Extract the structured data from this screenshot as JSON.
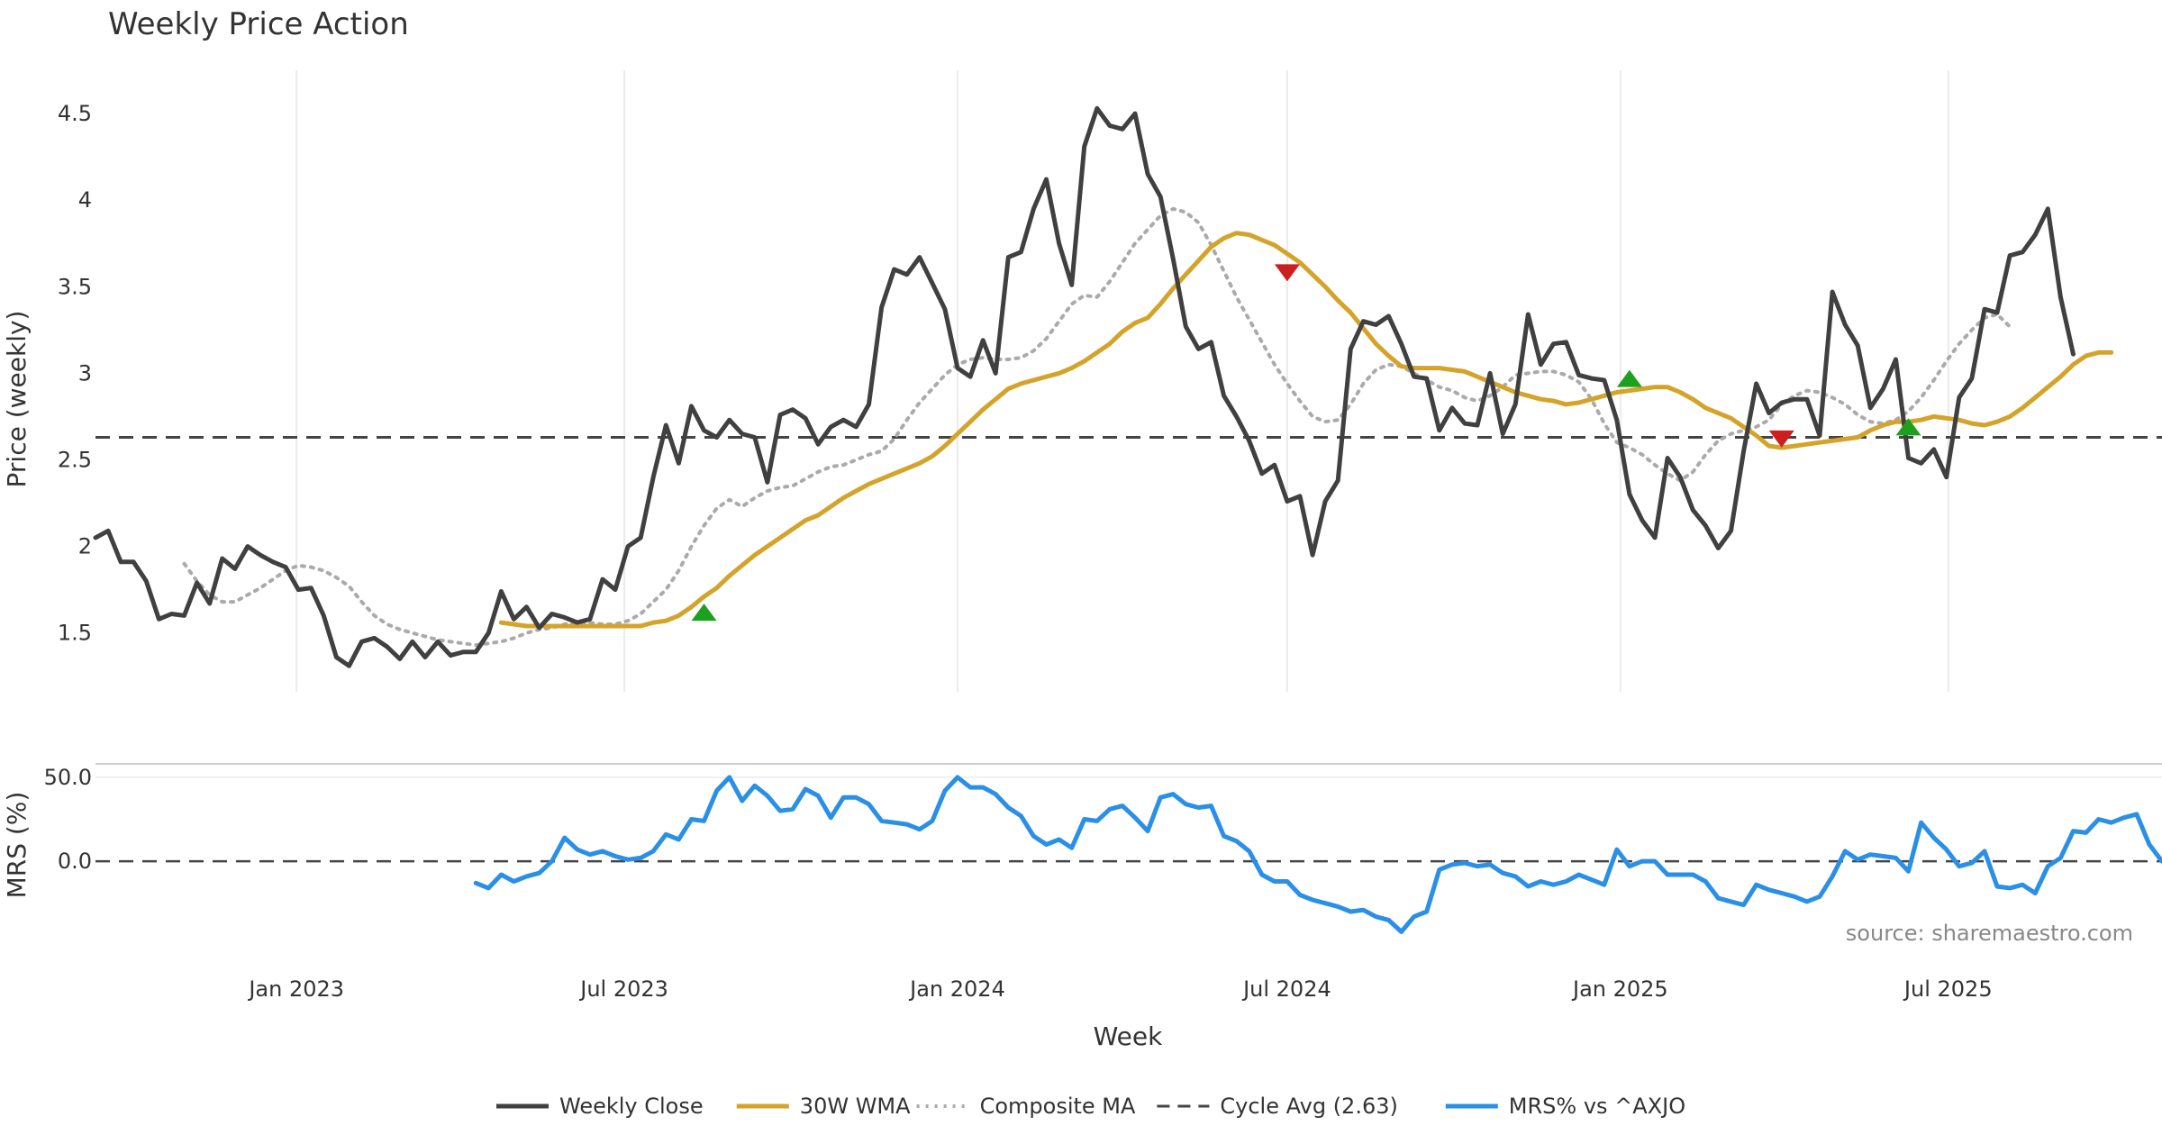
{
  "chart_data": {
    "type": "line",
    "title": "Weekly Price Action",
    "xlabel": "Week",
    "source": "source: sharemaestro.com",
    "x_ticks": [
      {
        "date": "2023-01-01",
        "label": "Jan 2023"
      },
      {
        "date": "2023-07-01",
        "label": "Jul 2023"
      },
      {
        "date": "2024-01-01",
        "label": "Jan 2024"
      },
      {
        "date": "2024-07-01",
        "label": "Jul 2024"
      },
      {
        "date": "2025-01-01",
        "label": "Jan 2025"
      },
      {
        "date": "2025-07-01",
        "label": "Jul 2025"
      }
    ],
    "x_range": [
      "2022-09-12",
      "2025-10-27"
    ],
    "price_panel": {
      "ylabel": "Price (weekly)",
      "ylim": [
        1.16,
        4.75
      ],
      "yticks": [
        {
          "value": 1.5,
          "label": "1.5"
        },
        {
          "value": 2,
          "label": "2"
        },
        {
          "value": 2.5,
          "label": "2.5"
        },
        {
          "value": 3,
          "label": "3"
        },
        {
          "value": 3.5,
          "label": "3.5"
        },
        {
          "value": 4,
          "label": "4"
        },
        {
          "value": 4.5,
          "label": "4.5"
        }
      ],
      "grid": true,
      "reference_line": {
        "name": "Cycle Avg (2.63)",
        "value": 2.63,
        "color": "#444444"
      },
      "series": [
        {
          "name": "Weekly Close",
          "color": "#404040",
          "style": "solid",
          "start": "2022-09-12",
          "interval_days": 7,
          "values": [
            2.05,
            2.09,
            1.91,
            1.91,
            1.8,
            1.58,
            1.61,
            1.6,
            1.79,
            1.67,
            1.93,
            1.87,
            2.0,
            1.95,
            1.91,
            1.88,
            1.75,
            1.76,
            1.6,
            1.36,
            1.31,
            1.45,
            1.47,
            1.42,
            1.35,
            1.45,
            1.36,
            1.45,
            1.37,
            1.39,
            1.39,
            1.5,
            1.74,
            1.58,
            1.65,
            1.53,
            1.61,
            1.59,
            1.56,
            1.58,
            1.81,
            1.75,
            2.0,
            2.05,
            2.4,
            2.7,
            2.48,
            2.81,
            2.67,
            2.63,
            2.73,
            2.65,
            2.63,
            2.37,
            2.76,
            2.79,
            2.74,
            2.59,
            2.69,
            2.73,
            2.69,
            2.82,
            3.38,
            3.6,
            3.57,
            3.67,
            3.52,
            3.37,
            3.03,
            2.98,
            3.19,
            3.0,
            3.67,
            3.7,
            3.95,
            4.12,
            3.75,
            3.51,
            4.31,
            4.53,
            4.43,
            4.41,
            4.5,
            4.15,
            4.02,
            3.66,
            3.27,
            3.14,
            3.18,
            2.87,
            2.75,
            2.61,
            2.42,
            2.47,
            2.26,
            2.29,
            1.95,
            2.26,
            2.38,
            3.14,
            3.3,
            3.28,
            3.33,
            3.17,
            2.98,
            2.97,
            2.67,
            2.8,
            2.71,
            2.7,
            3.0,
            2.65,
            2.82,
            3.34,
            3.05,
            3.17,
            3.18,
            2.99,
            2.97,
            2.96,
            2.73,
            2.3,
            2.15,
            2.05,
            2.51,
            2.4,
            2.21,
            2.12,
            1.99,
            2.09,
            2.55,
            2.94,
            2.77,
            2.83,
            2.85,
            2.85,
            2.64,
            3.47,
            3.28,
            3.16,
            2.8,
            2.91,
            3.08,
            2.51,
            2.48,
            2.56,
            2.4,
            2.86,
            2.97,
            3.37,
            3.35,
            3.68,
            3.7,
            3.8,
            3.95,
            3.44,
            3.11
          ]
        },
        {
          "name": "30W WMA",
          "color": "#D4A32A",
          "style": "solid",
          "start": "2023-04-24",
          "interval_days": 7,
          "values": [
            1.56,
            1.55,
            1.54,
            1.54,
            1.54,
            1.54,
            1.54,
            1.54,
            1.54,
            1.54,
            1.54,
            1.54,
            1.56,
            1.57,
            1.6,
            1.65,
            1.71,
            1.76,
            1.83,
            1.89,
            1.95,
            2.0,
            2.05,
            2.1,
            2.15,
            2.18,
            2.23,
            2.28,
            2.32,
            2.36,
            2.39,
            2.42,
            2.45,
            2.48,
            2.52,
            2.58,
            2.65,
            2.72,
            2.79,
            2.85,
            2.91,
            2.94,
            2.96,
            2.98,
            3.0,
            3.03,
            3.07,
            3.12,
            3.17,
            3.24,
            3.29,
            3.32,
            3.4,
            3.49,
            3.57,
            3.65,
            3.73,
            3.78,
            3.81,
            3.8,
            3.77,
            3.74,
            3.69,
            3.64,
            3.57,
            3.5,
            3.42,
            3.35,
            3.26,
            3.17,
            3.1,
            3.04,
            3.03,
            3.03,
            3.03,
            3.02,
            3.01,
            2.98,
            2.95,
            2.92,
            2.89,
            2.87,
            2.85,
            2.84,
            2.82,
            2.83,
            2.85,
            2.87,
            2.89,
            2.9,
            2.91,
            2.92,
            2.92,
            2.89,
            2.85,
            2.8,
            2.77,
            2.74,
            2.69,
            2.64,
            2.58,
            2.57,
            2.58,
            2.59,
            2.6,
            2.61,
            2.62,
            2.63,
            2.67,
            2.7,
            2.72,
            2.72,
            2.73,
            2.75,
            2.74,
            2.73,
            2.71,
            2.7,
            2.72,
            2.75,
            2.8,
            2.86,
            2.92,
            2.98,
            3.05,
            3.1,
            3.12,
            3.12
          ]
        },
        {
          "name": "Composite MA",
          "color": "#AAAAAA",
          "style": "dotted",
          "start": "2022-10-31",
          "interval_days": 7,
          "values": [
            1.9,
            1.8,
            1.72,
            1.68,
            1.68,
            1.72,
            1.76,
            1.81,
            1.86,
            1.89,
            1.88,
            1.86,
            1.82,
            1.77,
            1.68,
            1.6,
            1.55,
            1.52,
            1.5,
            1.48,
            1.46,
            1.45,
            1.44,
            1.43,
            1.44,
            1.45,
            1.47,
            1.5,
            1.52,
            1.53,
            1.55,
            1.56,
            1.56,
            1.55,
            1.55,
            1.57,
            1.61,
            1.68,
            1.75,
            1.86,
            2.0,
            2.12,
            2.22,
            2.27,
            2.23,
            2.28,
            2.32,
            2.34,
            2.35,
            2.39,
            2.43,
            2.46,
            2.47,
            2.5,
            2.53,
            2.55,
            2.62,
            2.73,
            2.83,
            2.91,
            2.99,
            3.05,
            3.08,
            3.09,
            3.08,
            3.08,
            3.09,
            3.13,
            3.2,
            3.3,
            3.4,
            3.45,
            3.44,
            3.53,
            3.64,
            3.75,
            3.83,
            3.91,
            3.95,
            3.93,
            3.87,
            3.74,
            3.59,
            3.44,
            3.31,
            3.18,
            3.05,
            2.94,
            2.84,
            2.75,
            2.72,
            2.73,
            2.82,
            2.94,
            3.02,
            3.05,
            3.04,
            3.0,
            2.96,
            2.92,
            2.9,
            2.86,
            2.84,
            2.87,
            2.92,
            2.99,
            3.0,
            3.01,
            3.01,
            2.99,
            2.95,
            2.85,
            2.71,
            2.6,
            2.57,
            2.53,
            2.47,
            2.42,
            2.38,
            2.43,
            2.53,
            2.61,
            2.65,
            2.67,
            2.69,
            2.73,
            2.82,
            2.87,
            2.9,
            2.89,
            2.86,
            2.82,
            2.76,
            2.72,
            2.71,
            2.73,
            2.78,
            2.86,
            2.96,
            3.07,
            3.17,
            3.25,
            3.32,
            3.34,
            3.27
          ]
        }
      ],
      "signals": [
        {
          "date": "2023-08-14",
          "value": 1.62,
          "direction": "up",
          "color": "#1DA01D"
        },
        {
          "date": "2024-07-01",
          "value": 3.58,
          "direction": "down",
          "color": "#CC1F1F"
        },
        {
          "date": "2025-01-06",
          "value": 2.97,
          "direction": "up",
          "color": "#1DA01D"
        },
        {
          "date": "2025-03-31",
          "value": 2.62,
          "direction": "down",
          "color": "#CC1F1F"
        },
        {
          "date": "2025-06-09",
          "value": 2.69,
          "direction": "up",
          "color": "#1DA01D"
        }
      ]
    },
    "mrs_panel": {
      "ylabel": "MRS (%)",
      "ylim": [
        -45,
        58
      ],
      "yticks": [
        {
          "value": 0,
          "label": "0.0"
        },
        {
          "value": 50,
          "label": "50.0"
        }
      ],
      "reference_line": {
        "value": 0
      },
      "series": [
        {
          "name": "MRS% vs ^AXJO",
          "color": "#2A8FE6",
          "style": "solid",
          "start": "2023-04-10",
          "interval_days": 7,
          "values": [
            -13,
            -16,
            -8,
            -12,
            -9,
            -7,
            0,
            14,
            7,
            4,
            6,
            3,
            1,
            2,
            6,
            16,
            13,
            25,
            24,
            42,
            50,
            36,
            45,
            39,
            30,
            31,
            43,
            39,
            26,
            38,
            38,
            34,
            24,
            23,
            22,
            19,
            24,
            42,
            50,
            44,
            44,
            40,
            32,
            27,
            15,
            10,
            13,
            8,
            25,
            24,
            31,
            33,
            26,
            18,
            38,
            40,
            34,
            32,
            33,
            15,
            12,
            6,
            -8,
            -12,
            -12,
            -20,
            -23,
            -25,
            -27,
            -30,
            -29,
            -33,
            -35,
            -42,
            -33,
            -30,
            -5,
            -2,
            -1,
            -3,
            -2,
            -7,
            -9,
            -15,
            -12,
            -14,
            -12,
            -8,
            -11,
            -14,
            7,
            -3,
            0,
            0,
            -8,
            -8,
            -8,
            -12,
            -22,
            -24,
            -26,
            -14,
            -17,
            -19,
            -21,
            -24,
            -21,
            -9,
            6,
            1,
            4,
            3,
            2,
            -6,
            23,
            14,
            7,
            -3,
            -1,
            6,
            -15,
            -16,
            -14,
            -19,
            -3,
            2,
            18,
            17,
            25,
            23,
            26,
            28,
            10,
            0
          ]
        }
      ]
    },
    "legend": {
      "placement": "bottom-center",
      "items": [
        {
          "label": "Weekly Close",
          "color": "#404040",
          "style": "solid"
        },
        {
          "label": "30W WMA",
          "color": "#D4A32A",
          "style": "solid"
        },
        {
          "label": "Composite MA",
          "color": "#AAAAAA",
          "style": "dotted"
        },
        {
          "label": "Cycle Avg (2.63)",
          "color": "#444444",
          "style": "dashed"
        },
        {
          "label": "MRS% vs ^AXJO",
          "color": "#2A8FE6",
          "style": "solid"
        }
      ]
    }
  }
}
